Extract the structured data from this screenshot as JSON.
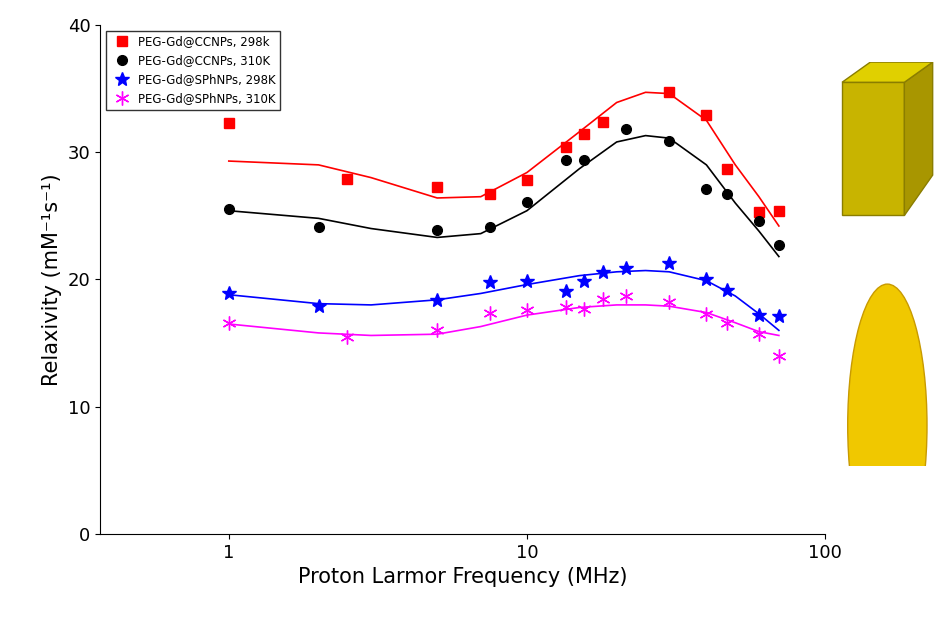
{
  "chart_data": {
    "type": "scatter",
    "x_label": "Proton Larmor Frequency (MHz)",
    "y_label": "Relaxivity (mM⁻¹s⁻¹)",
    "log": "x",
    "xlim": [
      0.37,
      100
    ],
    "xticks": [
      1,
      10,
      100
    ],
    "ylim": [
      0,
      40
    ],
    "yticks": [
      0,
      10,
      20,
      30,
      40
    ],
    "legend": "upper left",
    "series": [
      {
        "name": "PEG-Gd@CCNPs, 298k",
        "color": "#ff0000",
        "marker": "square",
        "x": [
          1,
          2.5,
          5,
          7.5,
          10,
          13.5,
          15.5,
          18,
          30,
          40,
          47,
          60,
          70
        ],
        "values": [
          32.3,
          27.9,
          27.3,
          26.7,
          27.8,
          30.4,
          31.4,
          32.4,
          34.7,
          32.9,
          28.7,
          25.3,
          25.4
        ],
        "fit": {
          "x": [
            1,
            2,
            3,
            5,
            7,
            10,
            15,
            20,
            25,
            30,
            40,
            50,
            60,
            70
          ],
          "values": [
            29.3,
            29.0,
            28.0,
            26.4,
            26.5,
            28.4,
            31.6,
            33.9,
            34.7,
            34.6,
            32.5,
            29.0,
            26.5,
            24.2
          ]
        }
      },
      {
        "name": "PEG-Gd@CCNPs, 310K",
        "color": "#000000",
        "marker": "circle",
        "x": [
          1,
          2,
          5,
          7.5,
          10,
          13.5,
          15.5,
          21.5,
          30,
          40,
          47,
          60,
          70
        ],
        "values": [
          25.5,
          24.1,
          23.9,
          24.1,
          26.1,
          29.4,
          29.4,
          31.8,
          30.9,
          27.1,
          26.7,
          24.6,
          22.7
        ],
        "fit": {
          "x": [
            1,
            2,
            3,
            5,
            7,
            10,
            15,
            20,
            25,
            30,
            40,
            50,
            60,
            70
          ],
          "values": [
            25.4,
            24.8,
            24.0,
            23.3,
            23.6,
            25.4,
            28.7,
            30.8,
            31.3,
            31.1,
            29.0,
            26.0,
            23.8,
            21.8
          ]
        }
      },
      {
        "name": "PEG-Gd@SPhNPs, 298K",
        "color": "#0000ff",
        "marker": "star",
        "x": [
          1,
          2,
          5,
          7.5,
          10,
          13.5,
          15.5,
          18,
          21.5,
          30,
          40,
          47,
          60,
          70
        ],
        "values": [
          18.9,
          17.9,
          18.4,
          19.8,
          19.9,
          19.1,
          19.9,
          20.6,
          20.9,
          21.3,
          20.0,
          19.2,
          17.2,
          17.1
        ],
        "fit": {
          "x": [
            1,
            2,
            3,
            5,
            7,
            10,
            15,
            20,
            25,
            30,
            40,
            50,
            60,
            70
          ],
          "values": [
            18.8,
            18.1,
            18.0,
            18.4,
            18.9,
            19.6,
            20.3,
            20.6,
            20.7,
            20.6,
            19.9,
            18.7,
            17.3,
            16.0
          ]
        }
      },
      {
        "name": "PEG-Gd@SPhNPs, 310K",
        "color": "#ff00ff",
        "marker": "asterisk",
        "x": [
          1,
          2.5,
          5,
          7.5,
          10,
          13.5,
          15.5,
          18,
          21.5,
          30,
          40,
          47,
          60,
          70
        ],
        "values": [
          16.6,
          15.5,
          16.0,
          17.4,
          17.6,
          17.8,
          17.7,
          18.5,
          18.7,
          18.2,
          17.3,
          16.6,
          15.7,
          14.0
        ],
        "fit": {
          "x": [
            1,
            2,
            3,
            5,
            7,
            10,
            15,
            20,
            25,
            30,
            40,
            50,
            60,
            70
          ],
          "values": [
            16.5,
            15.8,
            15.6,
            15.7,
            16.3,
            17.2,
            17.8,
            18.0,
            18.0,
            17.9,
            17.4,
            16.6,
            15.9,
            15.6
          ]
        }
      }
    ]
  }
}
